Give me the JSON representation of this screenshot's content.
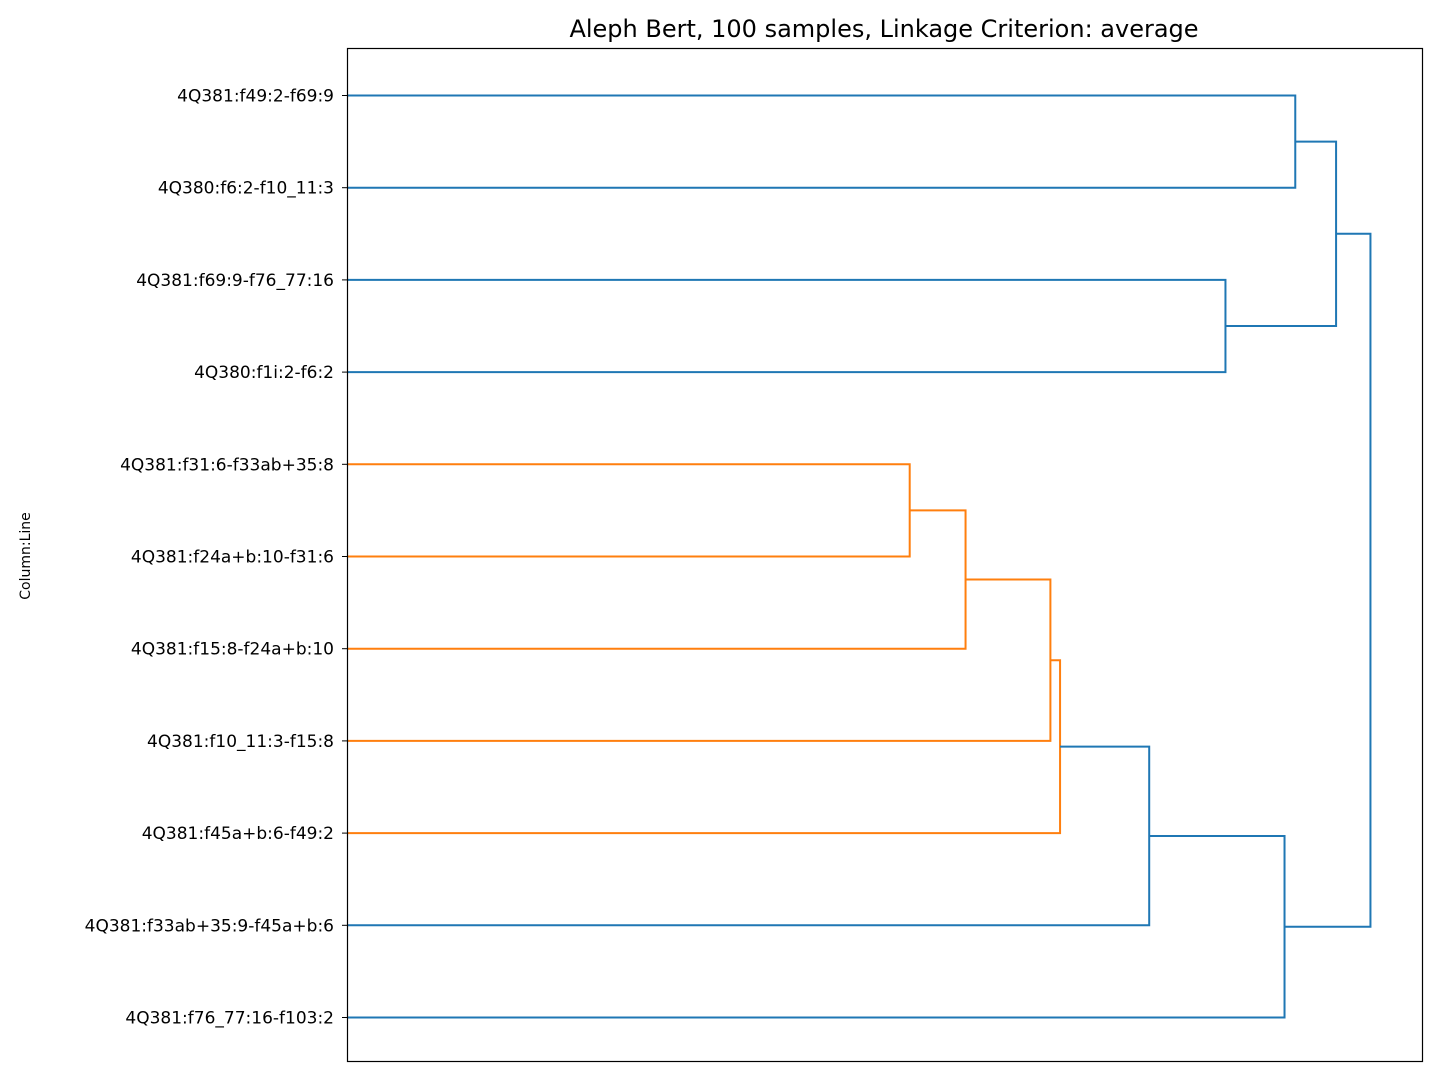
{
  "chart_data": {
    "type": "dendrogram",
    "title": "Aleph Bert, 100 samples, Linkage Criterion: average",
    "ylabel": "Column:Line",
    "orientation": "left",
    "leaves": [
      "4Q381:f49:2-f69:9",
      "4Q380:f6:2-f10_11:3",
      "4Q381:f69:9-f76_77:16",
      "4Q380:f1i:2-f6:2",
      "4Q381:f31:6-f33ab+35:8",
      "4Q381:f24a+b:10-f31:6",
      "4Q381:f15:8-f24a+b:10",
      "4Q381:f10_11:3-f15:8",
      "4Q381:f45a+b:6-f49:2",
      "4Q381:f33ab+35:9-f45a+b:6",
      "4Q381:f76_77:16-f103:2"
    ],
    "xlim": [
      0,
      1.0
    ],
    "merges": [
      {
        "left": 4,
        "right": 5,
        "height": 0.523,
        "color": "#ff7f0e"
      },
      {
        "left": 11,
        "right": 6,
        "height": 0.575,
        "color": "#ff7f0e"
      },
      {
        "left": 12,
        "right": 7,
        "height": 0.654,
        "color": "#ff7f0e"
      },
      {
        "left": 13,
        "right": 8,
        "height": 0.663,
        "color": "#ff7f0e"
      },
      {
        "left": 14,
        "right": 9,
        "height": 0.746,
        "color": "#1f77b4"
      },
      {
        "left": 2,
        "right": 3,
        "height": 0.817,
        "color": "#1f77b4"
      },
      {
        "left": 15,
        "right": 10,
        "height": 0.872,
        "color": "#1f77b4"
      },
      {
        "left": 0,
        "right": 1,
        "height": 0.882,
        "color": "#1f77b4"
      },
      {
        "left": 18,
        "right": 16,
        "height": 0.92,
        "color": "#1f77b4"
      },
      {
        "left": 19,
        "right": 17,
        "height": 0.952,
        "color": "#1f77b4"
      }
    ],
    "grid": false
  }
}
